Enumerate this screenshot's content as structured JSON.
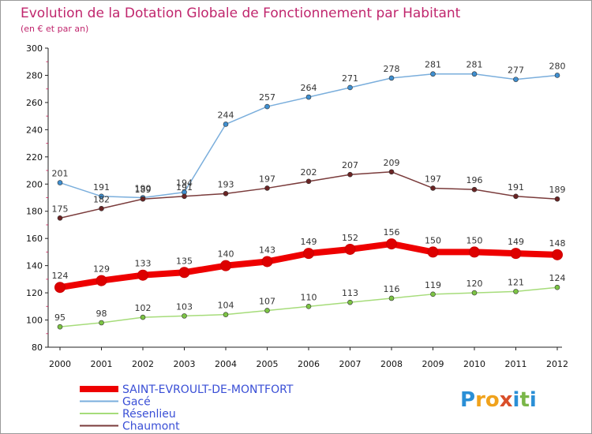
{
  "brand": {
    "text": "Proxiti",
    "colors": [
      "#2a8fd6",
      "#f0a21c",
      "#f0a21c",
      "#d94f2a",
      "#2a8fd6",
      "#7ab648",
      "#2a8fd6"
    ]
  },
  "chart_data": {
    "type": "line",
    "title": "Evolution de la Dotation Globale de Fonctionnement par Habitant",
    "subtitle": "(en € et par an)",
    "xlabel": "",
    "ylabel": "",
    "x": [
      "2000",
      "2001",
      "2002",
      "2003",
      "2004",
      "2005",
      "2006",
      "2007",
      "2008",
      "2009",
      "2010",
      "2011",
      "2012"
    ],
    "ylim": [
      80,
      300
    ],
    "yticks": [
      80,
      100,
      120,
      140,
      160,
      180,
      200,
      220,
      240,
      260,
      280,
      300
    ],
    "grid": false,
    "legend_position": "bottom-left",
    "series": [
      {
        "name": "SAINT-EVROULT-DE-MONTFORT",
        "color": "#ee0000",
        "point_color": "#dd0000",
        "values": [
          124,
          129,
          133,
          135,
          140,
          143,
          149,
          152,
          156,
          150,
          150,
          149,
          148
        ]
      },
      {
        "name": "Gacé",
        "color": "#7aaedc",
        "point_color": "#3f8fd0",
        "values": [
          201,
          191,
          190,
          194,
          244,
          257,
          264,
          271,
          278,
          281,
          281,
          277,
          280
        ]
      },
      {
        "name": "Résenlieu",
        "color": "#a6dc7a",
        "point_color": "#7cc444",
        "values": [
          95,
          98,
          102,
          103,
          104,
          107,
          110,
          113,
          116,
          119,
          120,
          121,
          124
        ]
      },
      {
        "name": "Chaumont",
        "color": "#7a3b3b",
        "point_color": "#6a2424",
        "values": [
          175,
          182,
          189,
          191,
          193,
          197,
          202,
          207,
          209,
          197,
          196,
          191,
          189
        ]
      }
    ]
  }
}
